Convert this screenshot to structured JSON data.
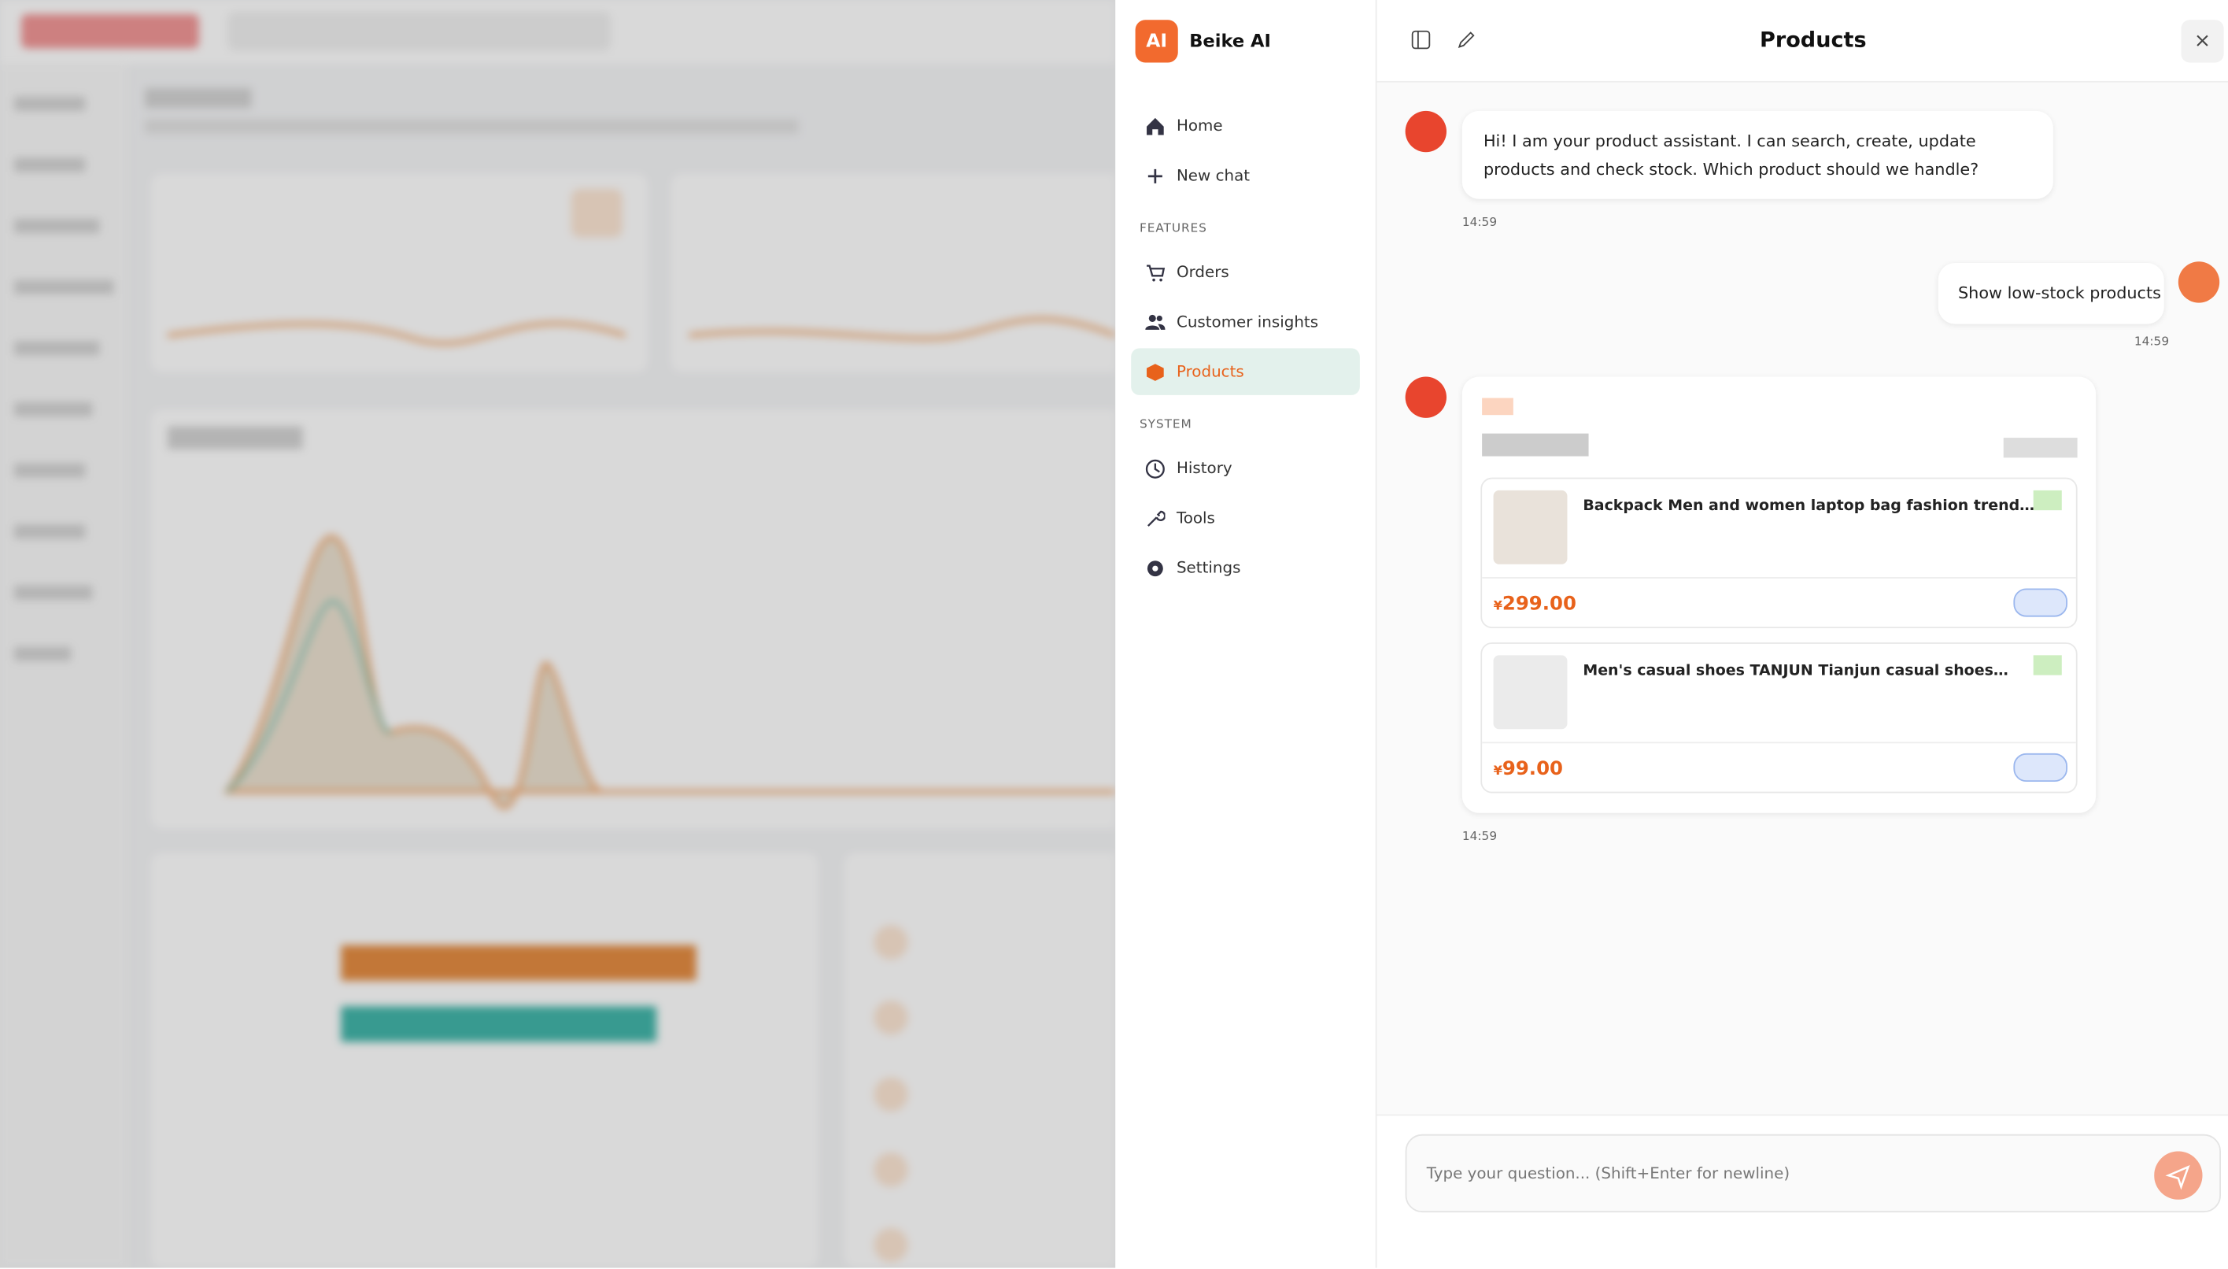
{
  "sidebar": {
    "brand": "Beike AI",
    "logo": "AI",
    "nav": [
      "Home",
      "New chat"
    ],
    "sections": [
      {
        "title": "FEATURES",
        "items": [
          "Orders",
          "Customer insights",
          "Products"
        ]
      },
      {
        "title": "SYSTEM",
        "items": [
          "History",
          "Tools",
          "Settings"
        ]
      }
    ]
  },
  "header": {
    "title": "Products"
  },
  "messages": [
    {
      "text": "Hi! I am your product assistant. I can search, create, update products and check stock. Which product should we handle?",
      "time": "14:59"
    },
    {
      "text": "Show low-stock products",
      "time": "14:59"
    },
    {
      "products": [
        {
          "name": "Backpack Men and women laptop bag fashion trend…",
          "currency": "¥",
          "price": "299.00"
        },
        {
          "name": "Men's casual shoes TANJUN Tianjun casual shoes…",
          "currency": "¥",
          "price": "99.00"
        }
      ],
      "time": "14:59"
    }
  ],
  "input": {
    "placeholder": "Type your question... (Shift+Enter for newline)"
  }
}
